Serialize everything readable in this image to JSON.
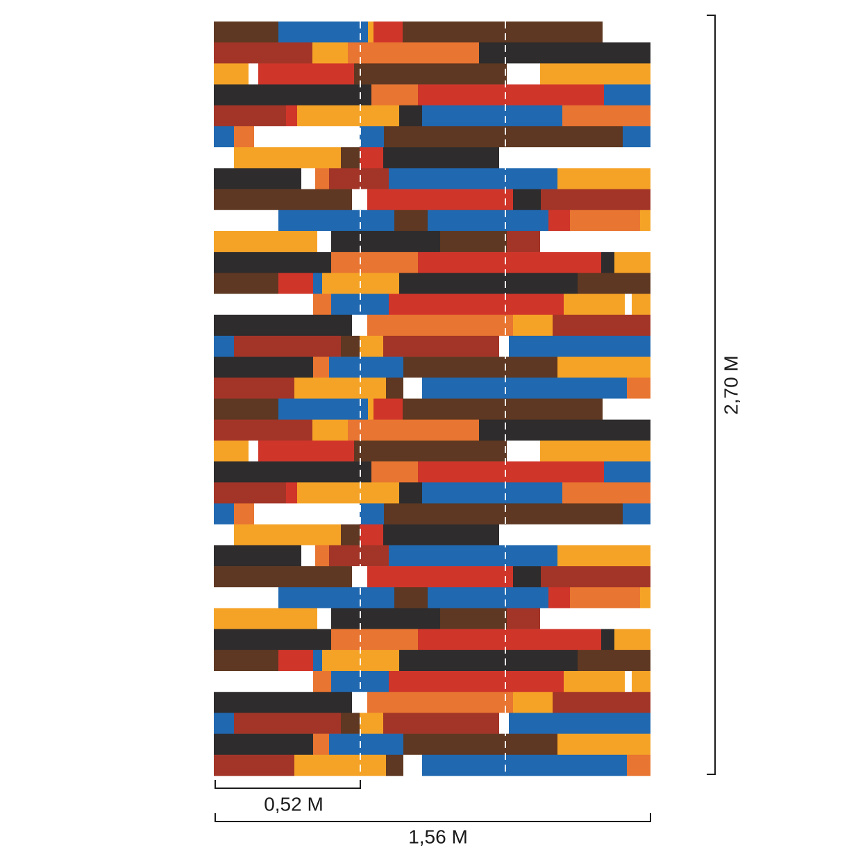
{
  "dimensions": {
    "strip_width": "0,52 M",
    "total_width": "1,56 M",
    "height": "2,70 M"
  }
}
